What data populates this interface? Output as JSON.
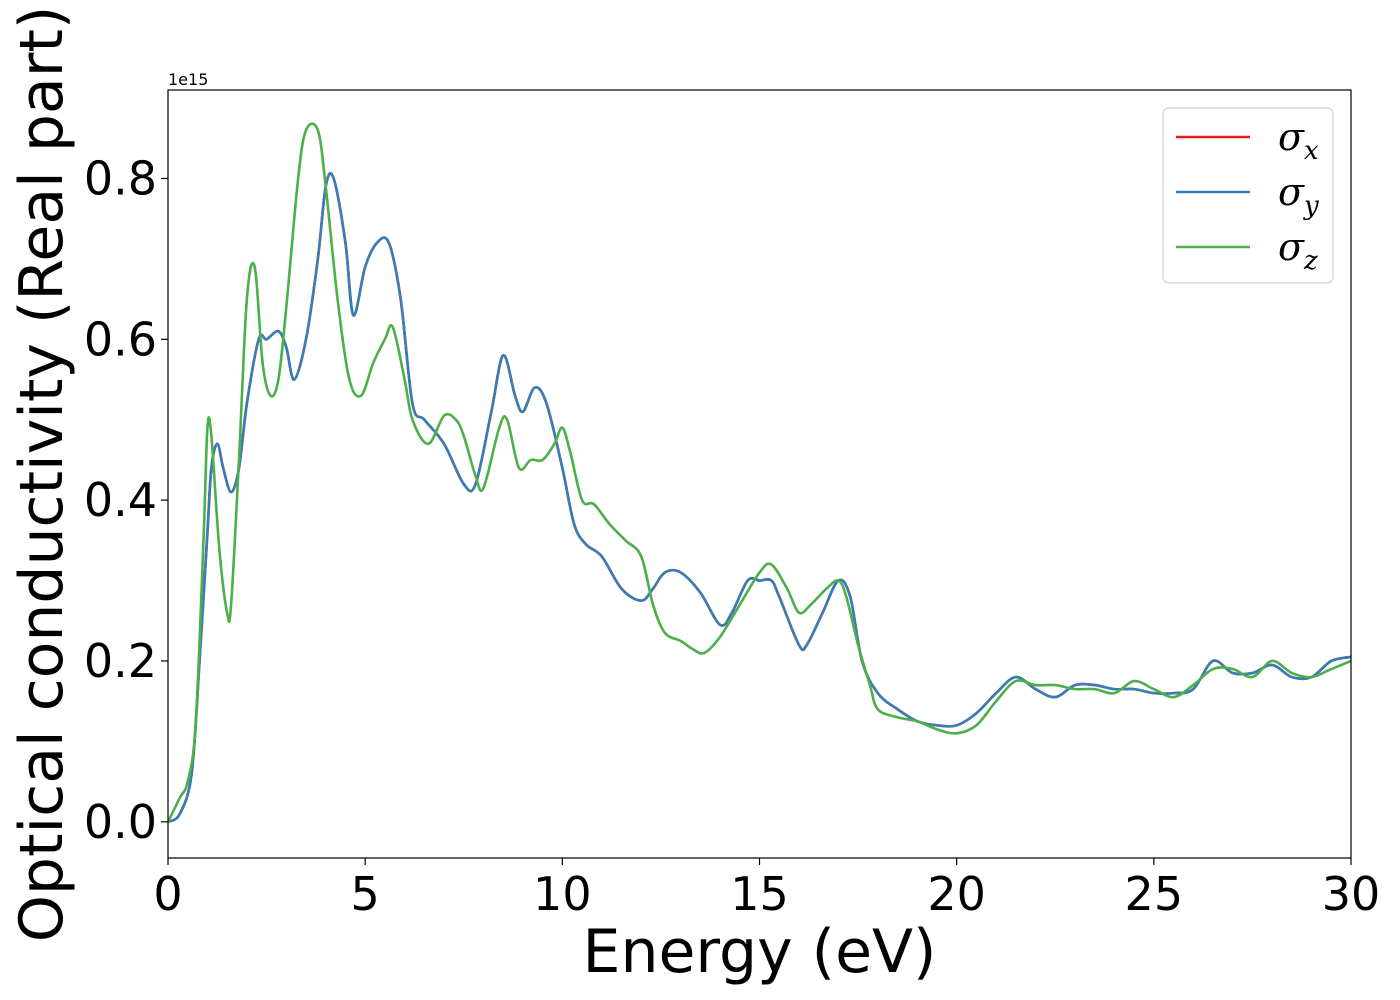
{
  "chart_data": {
    "type": "line",
    "title": "",
    "xlabel": "Energy (eV)",
    "ylabel": "Optical conductivity (Real part)",
    "y_offset_label": "1e15",
    "xlim": [
      0,
      30
    ],
    "ylim": [
      -0.045,
      0.91
    ],
    "xticks": [
      0,
      5,
      10,
      15,
      20,
      25,
      30
    ],
    "xtick_labels": [
      "0",
      "5",
      "10",
      "15",
      "20",
      "25",
      "30"
    ],
    "yticks": [
      0.0,
      0.2,
      0.4,
      0.6,
      0.8
    ],
    "ytick_labels": [
      "0.0",
      "0.2",
      "0.4",
      "0.6",
      "0.8"
    ],
    "grid": false,
    "legend_position": "top-right",
    "series": [
      {
        "name": "σx",
        "symbol": "σ",
        "subscript": "x",
        "color": "#e41a1c",
        "x": [
          0,
          0.3,
          0.6,
          0.8,
          1.0,
          1.1,
          1.25,
          1.4,
          1.6,
          1.8,
          2.0,
          2.3,
          2.5,
          2.8,
          3.0,
          3.2,
          3.5,
          3.8,
          4.0,
          4.2,
          4.5,
          4.7,
          5.0,
          5.3,
          5.6,
          5.9,
          6.2,
          6.5,
          7.0,
          7.5,
          7.8,
          8.2,
          8.5,
          8.8,
          9.0,
          9.3,
          9.6,
          10.0,
          10.3,
          10.6,
          11.0,
          11.5,
          12.0,
          12.3,
          12.6,
          13.0,
          13.5,
          14.0,
          14.3,
          14.7,
          15.0,
          15.3,
          15.5,
          16.0,
          16.2,
          16.6,
          17.0,
          17.3,
          17.6,
          18.0,
          18.5,
          19.0,
          19.5,
          20.0,
          20.5,
          21.0,
          21.5,
          22.0,
          22.5,
          23.0,
          23.5,
          24.0,
          24.5,
          25.0,
          25.5,
          26.0,
          26.5,
          27.0,
          27.5,
          28.0,
          28.5,
          29.0,
          29.5,
          30.0
        ],
        "values": [
          0.0,
          0.01,
          0.06,
          0.2,
          0.36,
          0.44,
          0.47,
          0.44,
          0.41,
          0.44,
          0.52,
          0.6,
          0.6,
          0.61,
          0.59,
          0.55,
          0.6,
          0.7,
          0.79,
          0.8,
          0.72,
          0.63,
          0.69,
          0.72,
          0.72,
          0.65,
          0.52,
          0.5,
          0.47,
          0.42,
          0.42,
          0.51,
          0.58,
          0.53,
          0.51,
          0.54,
          0.52,
          0.44,
          0.37,
          0.345,
          0.33,
          0.29,
          0.275,
          0.29,
          0.31,
          0.31,
          0.285,
          0.245,
          0.26,
          0.3,
          0.3,
          0.3,
          0.28,
          0.22,
          0.22,
          0.26,
          0.3,
          0.28,
          0.2,
          0.16,
          0.14,
          0.125,
          0.12,
          0.12,
          0.135,
          0.16,
          0.18,
          0.165,
          0.155,
          0.17,
          0.17,
          0.165,
          0.165,
          0.16,
          0.16,
          0.165,
          0.2,
          0.185,
          0.185,
          0.195,
          0.18,
          0.18,
          0.2,
          0.205
        ]
      },
      {
        "name": "σy",
        "symbol": "σ",
        "subscript": "y",
        "color": "#377eb8",
        "x": [
          0,
          0.3,
          0.6,
          0.8,
          1.0,
          1.1,
          1.25,
          1.4,
          1.6,
          1.8,
          2.0,
          2.3,
          2.5,
          2.8,
          3.0,
          3.2,
          3.5,
          3.8,
          4.0,
          4.2,
          4.5,
          4.7,
          5.0,
          5.3,
          5.6,
          5.9,
          6.2,
          6.5,
          7.0,
          7.5,
          7.8,
          8.2,
          8.5,
          8.8,
          9.0,
          9.3,
          9.6,
          10.0,
          10.3,
          10.6,
          11.0,
          11.5,
          12.0,
          12.3,
          12.6,
          13.0,
          13.5,
          14.0,
          14.3,
          14.7,
          15.0,
          15.3,
          15.5,
          16.0,
          16.2,
          16.6,
          17.0,
          17.3,
          17.6,
          18.0,
          18.5,
          19.0,
          19.5,
          20.0,
          20.5,
          21.0,
          21.5,
          22.0,
          22.5,
          23.0,
          23.5,
          24.0,
          24.5,
          25.0,
          25.5,
          26.0,
          26.5,
          27.0,
          27.5,
          28.0,
          28.5,
          29.0,
          29.5,
          30.0
        ],
        "values": [
          0.0,
          0.01,
          0.06,
          0.2,
          0.36,
          0.44,
          0.47,
          0.44,
          0.41,
          0.44,
          0.52,
          0.6,
          0.6,
          0.61,
          0.59,
          0.55,
          0.6,
          0.7,
          0.79,
          0.8,
          0.72,
          0.63,
          0.69,
          0.72,
          0.72,
          0.65,
          0.52,
          0.5,
          0.47,
          0.42,
          0.42,
          0.51,
          0.58,
          0.53,
          0.51,
          0.54,
          0.52,
          0.44,
          0.37,
          0.345,
          0.33,
          0.29,
          0.275,
          0.29,
          0.31,
          0.31,
          0.285,
          0.245,
          0.26,
          0.3,
          0.3,
          0.3,
          0.28,
          0.22,
          0.22,
          0.26,
          0.3,
          0.28,
          0.2,
          0.16,
          0.14,
          0.125,
          0.12,
          0.12,
          0.135,
          0.16,
          0.18,
          0.165,
          0.155,
          0.17,
          0.17,
          0.165,
          0.165,
          0.16,
          0.16,
          0.165,
          0.2,
          0.185,
          0.185,
          0.195,
          0.18,
          0.18,
          0.2,
          0.205
        ]
      },
      {
        "name": "σz",
        "symbol": "σ",
        "subscript": "z",
        "color": "#4daf4a",
        "x": [
          0,
          0.3,
          0.5,
          0.7,
          0.9,
          1.0,
          1.1,
          1.3,
          1.5,
          1.6,
          1.8,
          2.0,
          2.2,
          2.4,
          2.6,
          2.8,
          3.0,
          3.3,
          3.5,
          3.8,
          4.0,
          4.3,
          4.6,
          4.9,
          5.2,
          5.5,
          5.7,
          6.0,
          6.2,
          6.6,
          7.0,
          7.3,
          7.5,
          7.8,
          8.0,
          8.4,
          8.6,
          8.9,
          9.2,
          9.5,
          9.8,
          10.0,
          10.2,
          10.5,
          10.8,
          11.2,
          11.6,
          12.0,
          12.3,
          12.6,
          13.0,
          13.3,
          13.6,
          14.0,
          14.5,
          15.0,
          15.3,
          15.7,
          16.0,
          16.3,
          16.7,
          17.0,
          17.2,
          17.5,
          17.8,
          18.0,
          18.5,
          19.0,
          19.5,
          20.0,
          20.5,
          21.0,
          21.5,
          22.0,
          22.5,
          23.0,
          23.5,
          24.0,
          24.5,
          25.0,
          25.5,
          26.0,
          26.5,
          27.0,
          27.5,
          28.0,
          28.5,
          29.0,
          29.5,
          30.0
        ],
        "values": [
          0.0,
          0.03,
          0.05,
          0.12,
          0.35,
          0.49,
          0.48,
          0.34,
          0.26,
          0.27,
          0.45,
          0.65,
          0.69,
          0.57,
          0.53,
          0.55,
          0.64,
          0.8,
          0.86,
          0.86,
          0.79,
          0.65,
          0.55,
          0.53,
          0.57,
          0.6,
          0.615,
          0.55,
          0.5,
          0.47,
          0.505,
          0.5,
          0.48,
          0.43,
          0.415,
          0.49,
          0.5,
          0.44,
          0.45,
          0.45,
          0.47,
          0.49,
          0.46,
          0.4,
          0.395,
          0.37,
          0.35,
          0.33,
          0.27,
          0.235,
          0.225,
          0.215,
          0.21,
          0.23,
          0.27,
          0.31,
          0.32,
          0.29,
          0.26,
          0.27,
          0.29,
          0.3,
          0.28,
          0.22,
          0.17,
          0.14,
          0.13,
          0.125,
          0.115,
          0.11,
          0.12,
          0.15,
          0.175,
          0.17,
          0.17,
          0.165,
          0.165,
          0.16,
          0.175,
          0.165,
          0.155,
          0.17,
          0.19,
          0.19,
          0.18,
          0.2,
          0.185,
          0.18,
          0.19,
          0.2
        ]
      }
    ]
  }
}
